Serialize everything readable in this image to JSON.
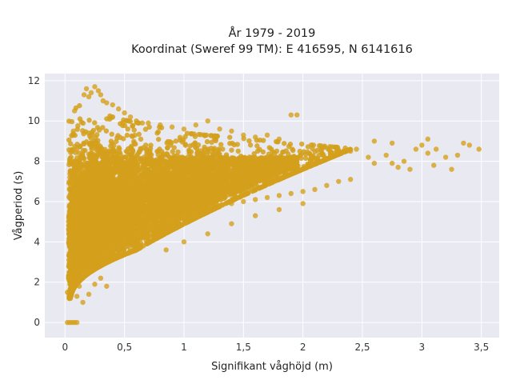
{
  "chart_data": {
    "type": "scatter",
    "title_lines": [
      "År 1979 - 2019",
      "Koordinat (Sweref 99 TM): E 416595, N 6141616"
    ],
    "xlabel": "Signifikant våghöjd (m)",
    "ylabel": "Vågperiod (s)",
    "xlim": [
      -0.17,
      3.65
    ],
    "ylim": [
      -0.75,
      12.35
    ],
    "x_ticks": [
      0,
      0.5,
      1,
      1.5,
      2,
      2.5,
      3,
      3.5
    ],
    "x_tick_labels": [
      "0",
      "0,5",
      "1",
      "1,5",
      "2",
      "2,5",
      "3",
      "3,5"
    ],
    "y_ticks": [
      0,
      2,
      4,
      6,
      8,
      10,
      12
    ],
    "y_tick_labels": [
      "0",
      "2",
      "4",
      "6",
      "8",
      "10",
      "12"
    ],
    "grid": true,
    "point_color": "#D4A01C",
    "plot_background": "#E9E9F1",
    "series": [
      {
        "values": [
          [
            0.02,
            0
          ],
          [
            0.04,
            0
          ],
          [
            0.06,
            0
          ],
          [
            0.08,
            0
          ],
          [
            0.1,
            0
          ],
          [
            0.02,
            1.5
          ],
          [
            0.03,
            2.2
          ],
          [
            0.04,
            3.0
          ],
          [
            0.05,
            4.0
          ],
          [
            0.05,
            5.5
          ],
          [
            0.06,
            7.0
          ],
          [
            0.06,
            8.5
          ],
          [
            0.07,
            9.5
          ],
          [
            0.08,
            10.5
          ],
          [
            0.1,
            1.3
          ],
          [
            0.12,
            1.8
          ],
          [
            0.15,
            2.2
          ],
          [
            0.2,
            2.6
          ],
          [
            0.25,
            3.0
          ],
          [
            0.3,
            3.3
          ],
          [
            0.35,
            3.6
          ],
          [
            0.4,
            3.8
          ],
          [
            0.5,
            4.1
          ],
          [
            0.6,
            4.4
          ],
          [
            0.7,
            4.6
          ],
          [
            0.8,
            4.9
          ],
          [
            0.9,
            5.1
          ],
          [
            1.0,
            5.3
          ],
          [
            1.1,
            5.5
          ],
          [
            1.2,
            5.6
          ],
          [
            1.3,
            5.8
          ],
          [
            1.4,
            5.9
          ],
          [
            1.5,
            6.0
          ],
          [
            1.6,
            6.1
          ],
          [
            1.7,
            6.2
          ],
          [
            1.8,
            6.3
          ],
          [
            1.9,
            6.4
          ],
          [
            2.0,
            6.5
          ],
          [
            2.1,
            6.6
          ],
          [
            2.2,
            6.8
          ],
          [
            2.3,
            7.0
          ],
          [
            2.4,
            7.1
          ],
          [
            0.16,
            11.3
          ],
          [
            0.18,
            11.6
          ],
          [
            0.2,
            11.2
          ],
          [
            0.22,
            11.4
          ],
          [
            0.25,
            11.7
          ],
          [
            0.28,
            11.5
          ],
          [
            0.3,
            11.3
          ],
          [
            0.32,
            11.0
          ],
          [
            0.35,
            10.9
          ],
          [
            0.4,
            10.8
          ],
          [
            0.45,
            10.6
          ],
          [
            0.5,
            10.4
          ],
          [
            0.55,
            10.2
          ],
          [
            0.6,
            10.0
          ],
          [
            0.65,
            9.9
          ],
          [
            0.7,
            9.9
          ],
          [
            0.8,
            9.8
          ],
          [
            0.9,
            9.7
          ],
          [
            1.0,
            9.6
          ],
          [
            1.1,
            9.8
          ],
          [
            1.2,
            10.0
          ],
          [
            1.3,
            9.6
          ],
          [
            1.4,
            9.5
          ],
          [
            1.5,
            9.3
          ],
          [
            1.6,
            9.2
          ],
          [
            1.7,
            9.3
          ],
          [
            1.8,
            9.1
          ],
          [
            1.9,
            10.3
          ],
          [
            1.95,
            10.3
          ],
          [
            0.15,
            1.0
          ],
          [
            0.2,
            1.4
          ],
          [
            0.25,
            1.9
          ],
          [
            0.3,
            2.2
          ],
          [
            0.35,
            1.8
          ],
          [
            0.85,
            3.6
          ],
          [
            1.0,
            4.0
          ],
          [
            1.2,
            4.4
          ],
          [
            1.4,
            4.9
          ],
          [
            1.6,
            5.3
          ],
          [
            1.8,
            5.6
          ],
          [
            2.0,
            5.9
          ],
          [
            2.4,
            8.5
          ],
          [
            2.45,
            8.6
          ],
          [
            2.55,
            8.2
          ],
          [
            2.6,
            7.9
          ],
          [
            2.7,
            8.3
          ],
          [
            2.75,
            7.9
          ],
          [
            2.8,
            7.7
          ],
          [
            2.85,
            8.0
          ],
          [
            2.9,
            7.6
          ],
          [
            2.95,
            8.6
          ],
          [
            3.0,
            8.8
          ],
          [
            3.05,
            8.4
          ],
          [
            3.1,
            7.8
          ],
          [
            3.2,
            8.2
          ],
          [
            3.3,
            8.3
          ],
          [
            3.35,
            8.9
          ],
          [
            3.4,
            8.8
          ],
          [
            3.48,
            8.6
          ],
          [
            2.6,
            9.0
          ],
          [
            2.75,
            8.9
          ],
          [
            3.12,
            8.6
          ],
          [
            3.25,
            7.6
          ],
          [
            3.05,
            9.1
          ]
        ]
      }
    ]
  }
}
